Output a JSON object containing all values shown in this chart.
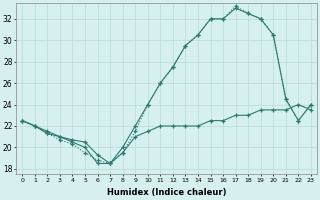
{
  "xlabel": "Humidex (Indice chaleur)",
  "bg_color": "#d5f0ee",
  "line_color": "#2d7a6e",
  "grid_color": "#b8ddd9",
  "xlim": [
    -0.5,
    23.5
  ],
  "ylim": [
    17.5,
    33.5
  ],
  "yticks": [
    18,
    20,
    22,
    24,
    26,
    28,
    30,
    32
  ],
  "xticks": [
    0,
    1,
    2,
    3,
    4,
    5,
    6,
    7,
    8,
    9,
    10,
    11,
    12,
    13,
    14,
    15,
    16,
    17,
    18,
    19,
    20,
    21,
    22,
    23
  ],
  "line1_x": [
    0,
    1,
    2,
    3,
    4,
    5,
    6,
    7,
    8,
    9,
    10,
    11,
    12,
    13,
    14,
    15,
    16,
    17,
    18,
    19,
    20,
    21,
    22,
    23
  ],
  "line1_y": [
    22.5,
    22,
    21.5,
    21,
    20.5,
    20,
    18.5,
    18.5,
    20,
    22,
    24,
    26,
    27.5,
    29.5,
    30.5,
    32,
    32,
    33,
    32.5,
    32,
    30.5,
    24.5,
    22.5,
    24
  ],
  "line2_x": [
    0,
    1,
    2,
    3,
    4,
    5,
    6,
    7,
    8,
    9,
    10,
    11,
    12,
    13,
    14,
    15,
    16,
    17,
    18,
    19,
    20,
    21,
    22,
    23
  ],
  "line2_y": [
    22.5,
    22,
    21.3,
    20.7,
    20.3,
    19.5,
    18.8,
    18.5,
    19.5,
    21.5,
    24,
    26,
    27.5,
    29.5,
    30.5,
    32,
    32,
    33.2,
    32.5,
    32,
    30.5,
    24.5,
    22.5,
    24
  ],
  "line3_x": [
    0,
    1,
    2,
    3,
    4,
    5,
    6,
    7,
    8,
    9,
    10,
    11,
    12,
    13,
    14,
    15,
    16,
    17,
    18,
    19,
    20,
    21,
    22,
    23
  ],
  "line3_y": [
    22.5,
    22,
    21.3,
    21,
    20.7,
    20.5,
    19.3,
    18.5,
    19.5,
    21,
    21.5,
    22,
    22,
    22,
    22,
    22.5,
    22.5,
    23,
    23,
    23.5,
    23.5,
    23.5,
    24,
    23.5
  ],
  "line1_style": "solid",
  "line2_style": "solid",
  "line3_style": "solid"
}
